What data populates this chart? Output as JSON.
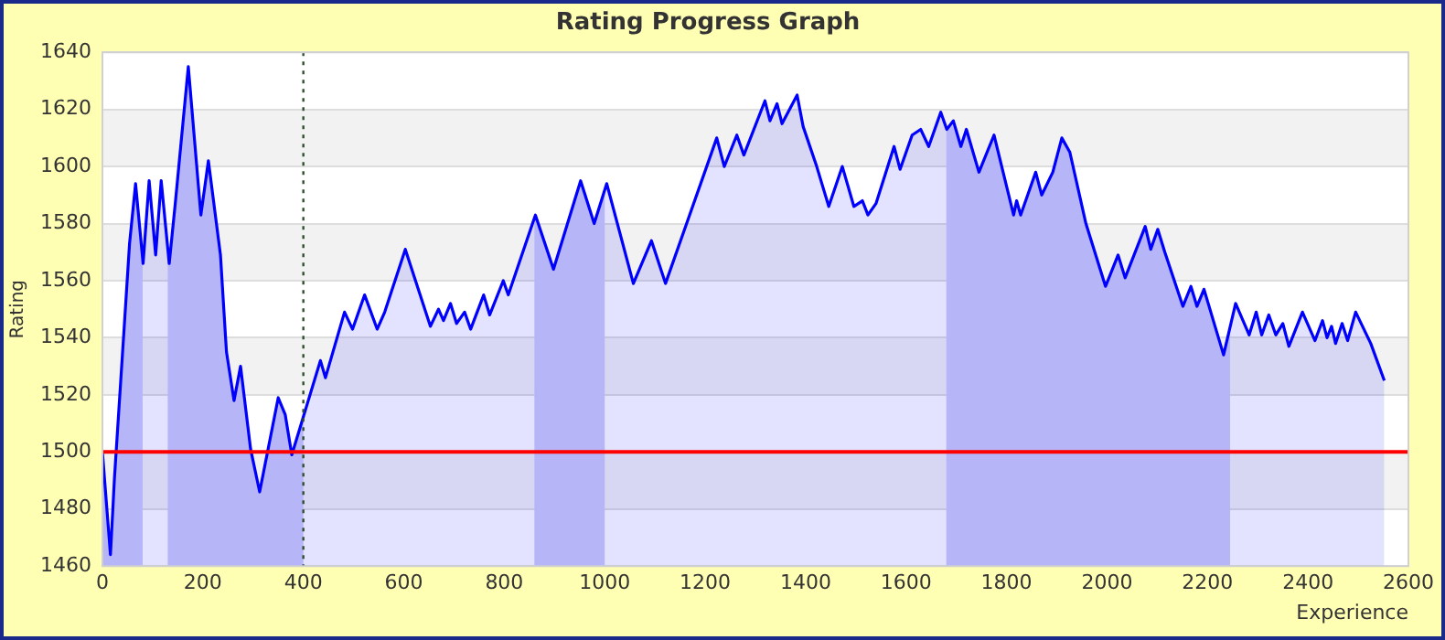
{
  "chart_data": {
    "type": "area",
    "title": "Rating Progress Graph",
    "xlabel": "Experience",
    "ylabel": "Rating",
    "x": [
      0,
      16,
      24,
      42,
      54,
      66,
      81,
      93,
      106,
      117,
      133,
      145,
      171,
      196,
      211,
      235,
      247,
      262,
      275,
      295,
      313,
      350,
      364,
      377,
      434,
      444,
      482,
      498,
      522,
      547,
      562,
      603,
      653,
      669,
      679,
      693,
      705,
      721,
      733,
      759,
      771,
      798,
      808,
      862,
      898,
      952,
      979,
      1004,
      1057,
      1093,
      1121,
      1223,
      1238,
      1263,
      1277,
      1319,
      1329,
      1343,
      1353,
      1383,
      1395,
      1422,
      1446,
      1473,
      1496,
      1513,
      1524,
      1540,
      1576,
      1588,
      1612,
      1629,
      1645,
      1669,
      1681,
      1694,
      1709,
      1720,
      1745,
      1775,
      1814,
      1820,
      1828,
      1858,
      1870,
      1892,
      1910,
      1926,
      1958,
      1997,
      2022,
      2036,
      2076,
      2087,
      2101,
      2115,
      2151,
      2167,
      2179,
      2193,
      2232,
      2256,
      2283,
      2297,
      2308,
      2322,
      2336,
      2350,
      2362,
      2389,
      2414,
      2429,
      2438,
      2447,
      2455,
      2468,
      2479,
      2495,
      2525,
      2552
    ],
    "series": [
      {
        "color": "#0000ff",
        "values": [
          1500,
          1464,
          1491,
          1540,
          1573,
          1594,
          1566,
          1595,
          1569,
          1595,
          1566,
          1587,
          1635,
          1583,
          1602,
          1569,
          1535,
          1518,
          1530,
          1501,
          1486,
          1519,
          1513,
          1499,
          1532,
          1526,
          1549,
          1543,
          1555,
          1543,
          1549,
          1571,
          1544,
          1550,
          1546,
          1552,
          1545,
          1549,
          1543,
          1555,
          1548,
          1560,
          1555,
          1583,
          1564,
          1595,
          1580,
          1594,
          1559,
          1574,
          1559,
          1610,
          1600,
          1611,
          1604,
          1623,
          1616,
          1622,
          1615,
          1625,
          1614,
          1600,
          1586,
          1600,
          1586,
          1588,
          1583,
          1587,
          1607,
          1599,
          1611,
          1613,
          1607,
          1619,
          1613,
          1616,
          1607,
          1613,
          1598,
          1611,
          1583,
          1588,
          1583,
          1598,
          1590,
          1598,
          1610,
          1605,
          1580,
          1558,
          1569,
          1561,
          1579,
          1571,
          1578,
          1570,
          1551,
          1558,
          1551,
          1557,
          1534,
          1552,
          1541,
          1549,
          1541,
          1548,
          1541,
          1545,
          1537,
          1549,
          1539,
          1546,
          1540,
          1544,
          1538,
          1545,
          1539,
          1549,
          1538,
          1525
        ]
      }
    ],
    "xlim": [
      0,
      2600
    ],
    "xticks": [
      0,
      200,
      400,
      600,
      800,
      1000,
      1200,
      1400,
      1600,
      1800,
      2000,
      2200,
      2400,
      2600
    ],
    "ylim": [
      1460,
      1640
    ],
    "yticks": [
      1460,
      1480,
      1500,
      1520,
      1540,
      1560,
      1580,
      1600,
      1620,
      1640
    ],
    "grid": "y",
    "legend": false,
    "bands": [
      {
        "axis": "x",
        "from": 0,
        "to": 80,
        "color": "#ccccf8"
      },
      {
        "axis": "x",
        "from": 130,
        "to": 400,
        "color": "#ccccf8"
      },
      {
        "axis": "x",
        "from": 860,
        "to": 1000,
        "color": "#ccccf8"
      },
      {
        "axis": "x",
        "from": 1680,
        "to": 2245,
        "color": "#ccccf8"
      }
    ],
    "ref_lines": [
      {
        "axis": "y",
        "value": 1500,
        "color": "#ff0000",
        "line_style": "solid"
      },
      {
        "axis": "x",
        "value": 400,
        "color": "#2f4f2f",
        "line_style": "dotted"
      }
    ]
  }
}
